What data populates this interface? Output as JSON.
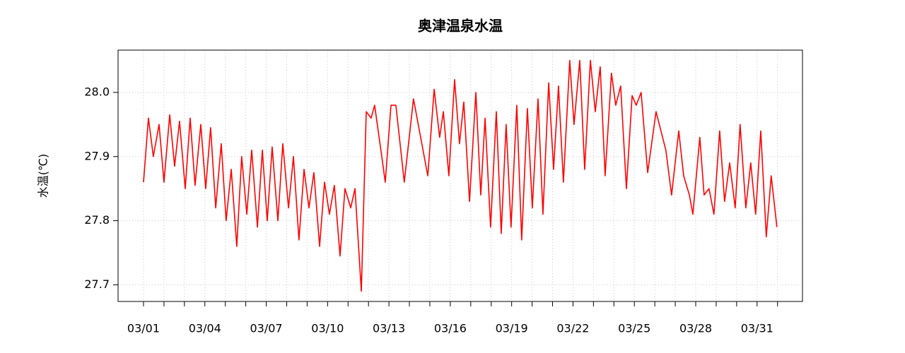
{
  "chart_data": {
    "type": "line",
    "title": "奥津温泉水温",
    "ylabel": "水温(℃)",
    "color": "#ff0000",
    "grid": true,
    "x": [
      1.0,
      1.24,
      1.48,
      1.76,
      2.0,
      2.28,
      2.52,
      2.76,
      3.04,
      3.28,
      3.52,
      3.8,
      4.04,
      4.28,
      4.53,
      4.8,
      5.04,
      5.29,
      5.56,
      5.8,
      6.05,
      6.29,
      6.57,
      6.81,
      7.05,
      7.29,
      7.57,
      7.81,
      8.09,
      8.33,
      8.6,
      8.85,
      9.09,
      9.33,
      9.61,
      9.85,
      10.09,
      10.33,
      10.61,
      10.85,
      11.13,
      11.34,
      11.65,
      11.89,
      12.13,
      12.3,
      12.65,
      12.82,
      13.1,
      13.34,
      13.75,
      14.2,
      14.55,
      14.9,
      15.21,
      15.48,
      15.66,
      15.93,
      16.21,
      16.45,
      16.66,
      16.94,
      17.25,
      17.49,
      17.7,
      17.97,
      18.25,
      18.49,
      18.73,
      18.97,
      19.25,
      19.49,
      19.77,
      20.01,
      20.29,
      20.53,
      20.81,
      21.05,
      21.29,
      21.53,
      21.84,
      22.05,
      22.33,
      22.57,
      22.85,
      23.09,
      23.33,
      23.57,
      23.88,
      24.09,
      24.33,
      24.61,
      24.89,
      25.09,
      25.33,
      25.65,
      26.06,
      26.3,
      26.54,
      26.82,
      27.17,
      27.41,
      27.69,
      27.86,
      28.2,
      28.41,
      28.65,
      28.89,
      29.17,
      29.41,
      29.66,
      29.93,
      30.17,
      30.45,
      30.69,
      30.93,
      31.18,
      31.45,
      31.69,
      31.97
    ],
    "values": [
      27.86,
      27.96,
      27.9,
      27.95,
      27.86,
      27.965,
      27.885,
      27.955,
      27.85,
      27.96,
      27.855,
      27.95,
      27.85,
      27.945,
      27.82,
      27.92,
      27.8,
      27.88,
      27.76,
      27.9,
      27.81,
      27.91,
      27.79,
      27.91,
      27.8,
      27.915,
      27.8,
      27.92,
      27.82,
      27.9,
      27.77,
      27.88,
      27.82,
      27.875,
      27.76,
      27.86,
      27.81,
      27.855,
      27.745,
      27.85,
      27.82,
      27.85,
      27.69,
      27.97,
      27.96,
      27.98,
      27.9,
      27.86,
      27.98,
      27.98,
      27.86,
      27.99,
      27.93,
      27.87,
      28.005,
      27.93,
      27.97,
      27.87,
      28.02,
      27.92,
      27.985,
      27.83,
      28.0,
      27.84,
      27.96,
      27.79,
      27.97,
      27.78,
      27.95,
      27.79,
      27.98,
      27.77,
      27.975,
      27.82,
      27.99,
      27.81,
      28.015,
      27.88,
      28.01,
      27.86,
      28.05,
      27.95,
      28.05,
      27.88,
      28.05,
      27.97,
      28.04,
      27.87,
      28.03,
      27.98,
      28.01,
      27.85,
      27.995,
      27.98,
      28.0,
      27.875,
      27.97,
      27.94,
      27.91,
      27.84,
      27.94,
      27.87,
      27.84,
      27.81,
      27.93,
      27.84,
      27.85,
      27.81,
      27.94,
      27.83,
      27.89,
      27.82,
      27.95,
      27.82,
      27.89,
      27.81,
      27.94,
      27.775,
      27.87,
      27.79
    ],
    "xlim": [
      -0.244,
      33.22
    ],
    "xticks": [
      {
        "value": 1,
        "label": "03/01"
      },
      {
        "value": 4,
        "label": "03/04"
      },
      {
        "value": 7,
        "label": "03/07"
      },
      {
        "value": 10,
        "label": "03/10"
      },
      {
        "value": 13,
        "label": "03/13"
      },
      {
        "value": 16,
        "label": "03/16"
      },
      {
        "value": 19,
        "label": "03/19"
      },
      {
        "value": 22,
        "label": "03/22"
      },
      {
        "value": 25,
        "label": "03/25"
      },
      {
        "value": 28,
        "label": "03/28"
      },
      {
        "value": 31,
        "label": "03/31"
      }
    ],
    "xticks_minor": [
      2,
      3,
      5,
      6,
      8,
      9,
      11,
      12,
      14,
      15,
      17,
      18,
      20,
      21,
      23,
      24,
      26,
      27,
      29,
      30,
      32
    ],
    "ylim": [
      27.674,
      28.066
    ],
    "yticks": [
      27.7,
      27.8,
      27.9,
      {
        "value": 28.0,
        "label": "28.0"
      }
    ]
  }
}
